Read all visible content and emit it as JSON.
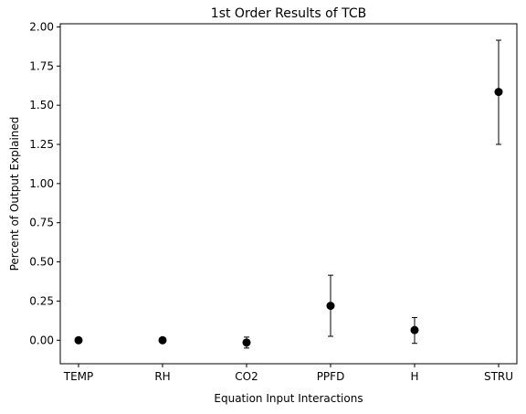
{
  "chart_data": {
    "type": "scatter",
    "title": "1st Order Results of TCB",
    "xlabel": "Equation Input Interactions",
    "ylabel": "Percent of Output Explained",
    "categories": [
      "TEMP",
      "RH",
      "CO2",
      "PPFD",
      "H",
      "STRU"
    ],
    "values": [
      0.0,
      0.0,
      -0.015,
      0.22,
      0.065,
      1.585
    ],
    "error_low": [
      0.0,
      0.0,
      -0.05,
      0.025,
      -0.02,
      1.25
    ],
    "error_high": [
      0.0,
      0.0,
      0.02,
      0.415,
      0.145,
      1.915
    ],
    "ylim": [
      -0.15,
      2.02
    ],
    "yticks": [
      0.0,
      0.25,
      0.5,
      0.75,
      1.0,
      1.25,
      1.5,
      1.75,
      2.0
    ],
    "ytick_labels": [
      "0.00",
      "0.25",
      "0.50",
      "0.75",
      "1.00",
      "1.25",
      "1.50",
      "1.75",
      "2.00"
    ],
    "marker_color": "#000000",
    "grid": false,
    "legend": "none"
  }
}
